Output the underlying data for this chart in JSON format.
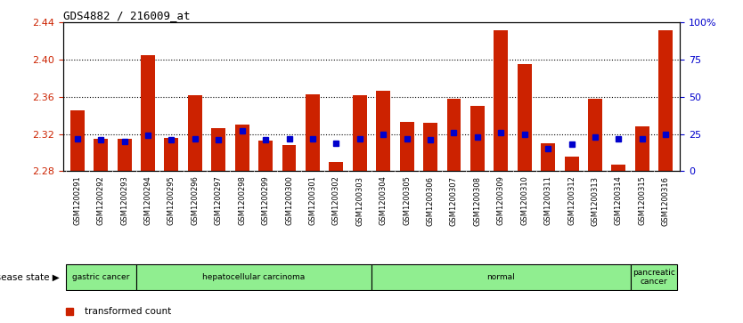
{
  "title": "GDS4882 / 216009_at",
  "samples": [
    "GSM1200291",
    "GSM1200292",
    "GSM1200293",
    "GSM1200294",
    "GSM1200295",
    "GSM1200296",
    "GSM1200297",
    "GSM1200298",
    "GSM1200299",
    "GSM1200300",
    "GSM1200301",
    "GSM1200302",
    "GSM1200303",
    "GSM1200304",
    "GSM1200305",
    "GSM1200306",
    "GSM1200307",
    "GSM1200308",
    "GSM1200309",
    "GSM1200310",
    "GSM1200311",
    "GSM1200312",
    "GSM1200313",
    "GSM1200314",
    "GSM1200315",
    "GSM1200316"
  ],
  "bar_values": [
    2.346,
    2.315,
    2.315,
    2.405,
    2.316,
    2.362,
    2.326,
    2.33,
    2.313,
    2.308,
    2.363,
    2.29,
    2.362,
    2.367,
    2.333,
    2.332,
    2.358,
    2.35,
    2.432,
    2.395,
    2.31,
    2.296,
    2.358,
    2.287,
    2.328,
    2.432
  ],
  "percentile_values": [
    22,
    21,
    20,
    24,
    21,
    22,
    21,
    27,
    21,
    22,
    22,
    19,
    22,
    25,
    22,
    21,
    26,
    23,
    26,
    25,
    15,
    18,
    23,
    22,
    22,
    25
  ],
  "group_boundaries": [
    [
      0,
      3,
      "gastric cancer"
    ],
    [
      3,
      13,
      "hepatocellular carcinoma"
    ],
    [
      13,
      24,
      "normal"
    ],
    [
      24,
      26,
      "pancreatic\ncancer"
    ]
  ],
  "ylim_left": [
    2.28,
    2.44
  ],
  "ylim_right": [
    0,
    100
  ],
  "yticks_left": [
    2.28,
    2.32,
    2.36,
    2.4,
    2.44
  ],
  "yticks_right": [
    0,
    25,
    50,
    75,
    100
  ],
  "bar_color": "#CC2200",
  "percentile_color": "#0000CC",
  "background_color": "#ffffff",
  "tick_bg_color": "#cccccc",
  "group_color": "#90EE90",
  "bar_width": 0.6,
  "base_value": 2.28
}
